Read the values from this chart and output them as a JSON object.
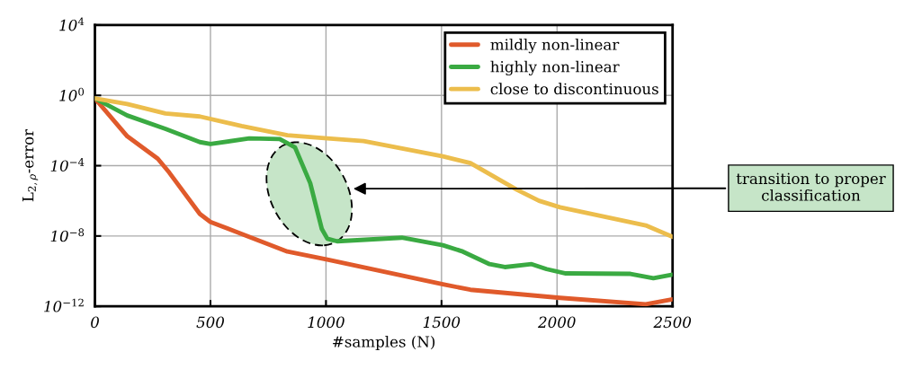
{
  "chart_data": {
    "type": "line",
    "xlabel": "#samples (N)",
    "ylabel": "L$_{2,ρ}$-error",
    "log": "y",
    "grid": true,
    "legend": "top right",
    "line_style": "solid",
    "marker": "none",
    "xlim": [
      0,
      2500
    ],
    "xticks": [
      0,
      500,
      1000,
      1500,
      2000,
      2500
    ],
    "ylim": [
      1e-12,
      10000.0
    ],
    "yticks": [
      {
        "value": 10000.0,
        "label": "10$^{4}$"
      },
      {
        "value": 1,
        "label": "10$^{0}$"
      },
      {
        "value": 0.0001,
        "label": "10$^{−4}$"
      },
      {
        "value": 1e-08,
        "label": "10$^{−8}$"
      },
      {
        "value": 1e-12,
        "label": "10$^{−12}$"
      }
    ],
    "series": [
      {
        "name": "mildly non-linear",
        "color": "#e05a2b",
        "x": [
          0,
          140,
          272,
          322,
          454,
          500,
          833,
          1006,
          1506,
          1625,
          2013,
          2384,
          2500
        ],
        "values": [
          0.68,
          0.0047,
          0.00025,
          4e-05,
          1.8e-07,
          6.3e-08,
          1.3e-09,
          4.5e-10,
          1.8e-11,
          8.7e-12,
          3e-12,
          1.3e-12,
          2.5e-12
        ]
      },
      {
        "name": "highly non-linear",
        "color": "#3aaa42",
        "x": [
          0,
          140,
          305,
          454,
          500,
          668,
          800,
          866,
          932,
          982,
          1006,
          1048,
          1328,
          1506,
          1592,
          1708,
          1774,
          1890,
          1955,
          2038,
          2318,
          2417,
          2500
        ],
        "values": [
          0.68,
          0.072,
          0.0126,
          0.0022,
          0.0017,
          0.0036,
          0.0033,
          0.0011,
          1e-05,
          2.5e-08,
          7e-09,
          5e-09,
          8e-09,
          3e-09,
          1.3e-09,
          2.5e-10,
          1.7e-10,
          2.5e-10,
          1.3e-10,
          7.4e-11,
          7e-11,
          4e-11,
          6.3e-11
        ]
      },
      {
        "name": "close to discontinuous",
        "color": "#ecbd4c",
        "x": [
          0,
          140,
          305,
          454,
          635,
          833,
          1006,
          1163,
          1506,
          1625,
          1823,
          1922,
          2013,
          2384,
          2500
        ],
        "values": [
          0.68,
          0.32,
          0.093,
          0.063,
          0.018,
          0.0054,
          0.0036,
          0.0025,
          0.00034,
          0.00014,
          4.5e-06,
          1e-06,
          4.3e-07,
          4e-08,
          8.9e-09
        ]
      }
    ],
    "annotations": [
      "transition to proper classification"
    ]
  }
}
